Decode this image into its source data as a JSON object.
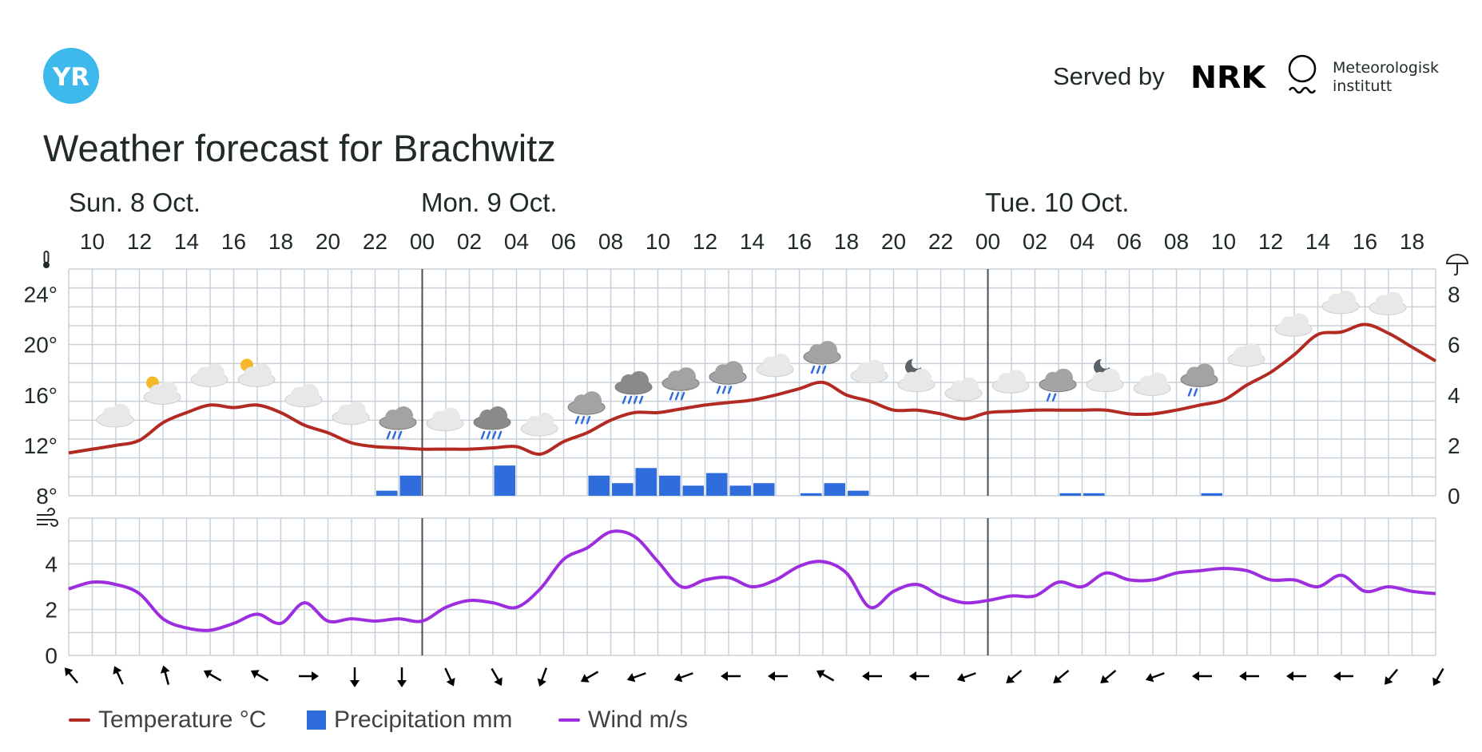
{
  "header": {
    "logo_text": "YR",
    "served_by": "Served by",
    "nrk_logo_text": "NRK",
    "met_line1": "Meteorologisk",
    "met_line2": "institutt"
  },
  "title": "Weather forecast for Brachwitz",
  "days": [
    "Sun. 8 Oct.",
    "Mon. 9 Oct.",
    "Tue. 10 Oct."
  ],
  "legend": {
    "temperature": "Temperature °C",
    "precipitation": "Precipitation mm",
    "wind": "Wind m/s"
  },
  "colors": {
    "temperature": "#b22a22",
    "precipitation": "#2f6ddc",
    "wind": "#9c2ee0",
    "grid": "#c7d0d8",
    "logo": "#3db9ec"
  },
  "chart_data": [
    {
      "type": "line",
      "title": "",
      "xlabel": "",
      "ylabel": "°C",
      "ylim": [
        8,
        26
      ],
      "y_tick_labels": [
        "8°",
        "12°",
        "16°",
        "20°",
        "24°"
      ],
      "y_ticks": [
        8,
        12,
        16,
        20,
        24
      ],
      "y2_tick_labels": [
        "0",
        "2",
        "4",
        "6",
        "8"
      ],
      "y2_ticks": [
        0,
        2,
        4,
        6,
        8
      ],
      "y2lim": [
        0,
        9
      ],
      "x_tick_labels": [
        "10",
        "12",
        "14",
        "16",
        "18",
        "20",
        "22",
        "00",
        "02",
        "04",
        "06",
        "08",
        "10",
        "12",
        "14",
        "16",
        "18",
        "20",
        "22",
        "00",
        "02",
        "04",
        "06",
        "08",
        "10",
        "12",
        "14",
        "16",
        "18"
      ],
      "x_hours": [
        "Sun 09",
        "Sun 10",
        "Sun 11",
        "Sun 12",
        "Sun 13",
        "Sun 14",
        "Sun 15",
        "Sun 16",
        "Sun 17",
        "Sun 18",
        "Sun 19",
        "Sun 20",
        "Sun 21",
        "Sun 22",
        "Sun 23",
        "Mon 00",
        "Mon 01",
        "Mon 02",
        "Mon 03",
        "Mon 04",
        "Mon 05",
        "Mon 06",
        "Mon 07",
        "Mon 08",
        "Mon 09",
        "Mon 10",
        "Mon 11",
        "Mon 12",
        "Mon 13",
        "Mon 14",
        "Mon 15",
        "Mon 16",
        "Mon 17",
        "Mon 18",
        "Mon 19",
        "Mon 20",
        "Mon 21",
        "Mon 22",
        "Mon 23",
        "Tue 00",
        "Tue 01",
        "Tue 02",
        "Tue 03",
        "Tue 04",
        "Tue 05",
        "Tue 06",
        "Tue 07",
        "Tue 08",
        "Tue 09",
        "Tue 10",
        "Tue 11",
        "Tue 12",
        "Tue 13",
        "Tue 14",
        "Tue 15",
        "Tue 16",
        "Tue 17",
        "Tue 18",
        "Tue 19"
      ],
      "grid": true,
      "series": [
        {
          "name": "Temperature °C",
          "axis": "left",
          "values": [
            11.4,
            11.7,
            12.0,
            12.4,
            13.8,
            14.6,
            15.2,
            15.0,
            15.2,
            14.6,
            13.6,
            13.0,
            12.2,
            11.9,
            11.8,
            11.7,
            11.7,
            11.7,
            11.8,
            11.9,
            11.3,
            12.3,
            13.0,
            14.0,
            14.6,
            14.6,
            14.9,
            15.2,
            15.4,
            15.6,
            16.0,
            16.5,
            17.0,
            16.0,
            15.5,
            14.8,
            14.8,
            14.5,
            14.1,
            14.6,
            14.7,
            14.8,
            14.8,
            14.8,
            14.8,
            14.5,
            14.5,
            14.8,
            15.2,
            15.6,
            16.8,
            17.8,
            19.2,
            20.8,
            21.0,
            21.6,
            20.9,
            19.8,
            18.7
          ]
        },
        {
          "name": "Precipitation mm",
          "axis": "right",
          "type": "bar",
          "values": [
            0,
            0,
            0,
            0,
            0,
            0,
            0,
            0,
            0,
            0,
            0,
            0,
            0,
            0.2,
            0.8,
            0,
            0,
            0,
            1.2,
            0,
            0,
            0,
            0.8,
            0.5,
            1.1,
            0.8,
            0.4,
            0.9,
            0.4,
            0.5,
            0,
            0.1,
            0.5,
            0.2,
            0,
            0,
            0,
            0,
            0,
            0,
            0,
            0,
            0.1,
            0.1,
            0,
            0,
            0,
            0,
            0.1,
            0,
            0,
            0,
            0,
            0,
            0,
            0,
            0,
            0,
            0
          ]
        }
      ],
      "weather_symbols": [
        "cloudy",
        "fair-day",
        "partly-cloudy",
        "fair-day",
        "cloudy",
        "cloudy",
        "rain",
        "cloudy",
        "heavy-rain",
        "cloudy",
        "rain",
        "heavy-rain",
        "rain",
        "rain",
        "cloudy",
        "rain",
        "cloudy",
        "partly-cloudy-night",
        "cloudy",
        "cloudy",
        "light-rain",
        "partly-cloudy-night",
        "cloudy",
        "light-rain",
        "cloudy",
        "cloudy",
        "cloudy",
        "cloudy"
      ]
    },
    {
      "type": "line",
      "title": "",
      "xlabel": "",
      "ylabel": "m/s",
      "ylim": [
        0,
        6
      ],
      "y_tick_labels": [
        "0",
        "2",
        "4"
      ],
      "y_ticks": [
        0,
        2,
        4
      ],
      "grid": true,
      "series": [
        {
          "name": "Wind m/s",
          "values": [
            2.9,
            3.2,
            3.1,
            2.7,
            1.6,
            1.2,
            1.1,
            1.4,
            1.8,
            1.4,
            2.3,
            1.5,
            1.6,
            1.5,
            1.6,
            1.5,
            2.1,
            2.4,
            2.3,
            2.1,
            2.9,
            4.2,
            4.7,
            5.4,
            5.2,
            4.1,
            3.0,
            3.3,
            3.4,
            3.0,
            3.3,
            3.9,
            4.1,
            3.6,
            2.1,
            2.8,
            3.1,
            2.6,
            2.3,
            2.4,
            2.6,
            2.6,
            3.2,
            3.0,
            3.6,
            3.3,
            3.3,
            3.6,
            3.7,
            3.8,
            3.7,
            3.3,
            3.3,
            3.0,
            3.5,
            2.8,
            3.0,
            2.8,
            2.7
          ]
        }
      ],
      "wind_directions_deg": [
        320,
        335,
        345,
        300,
        300,
        90,
        180,
        180,
        155,
        150,
        200,
        240,
        250,
        250,
        270,
        270,
        300,
        270,
        270,
        250,
        230,
        230,
        230,
        250,
        270,
        270,
        270,
        270,
        220,
        210
      ]
    }
  ]
}
